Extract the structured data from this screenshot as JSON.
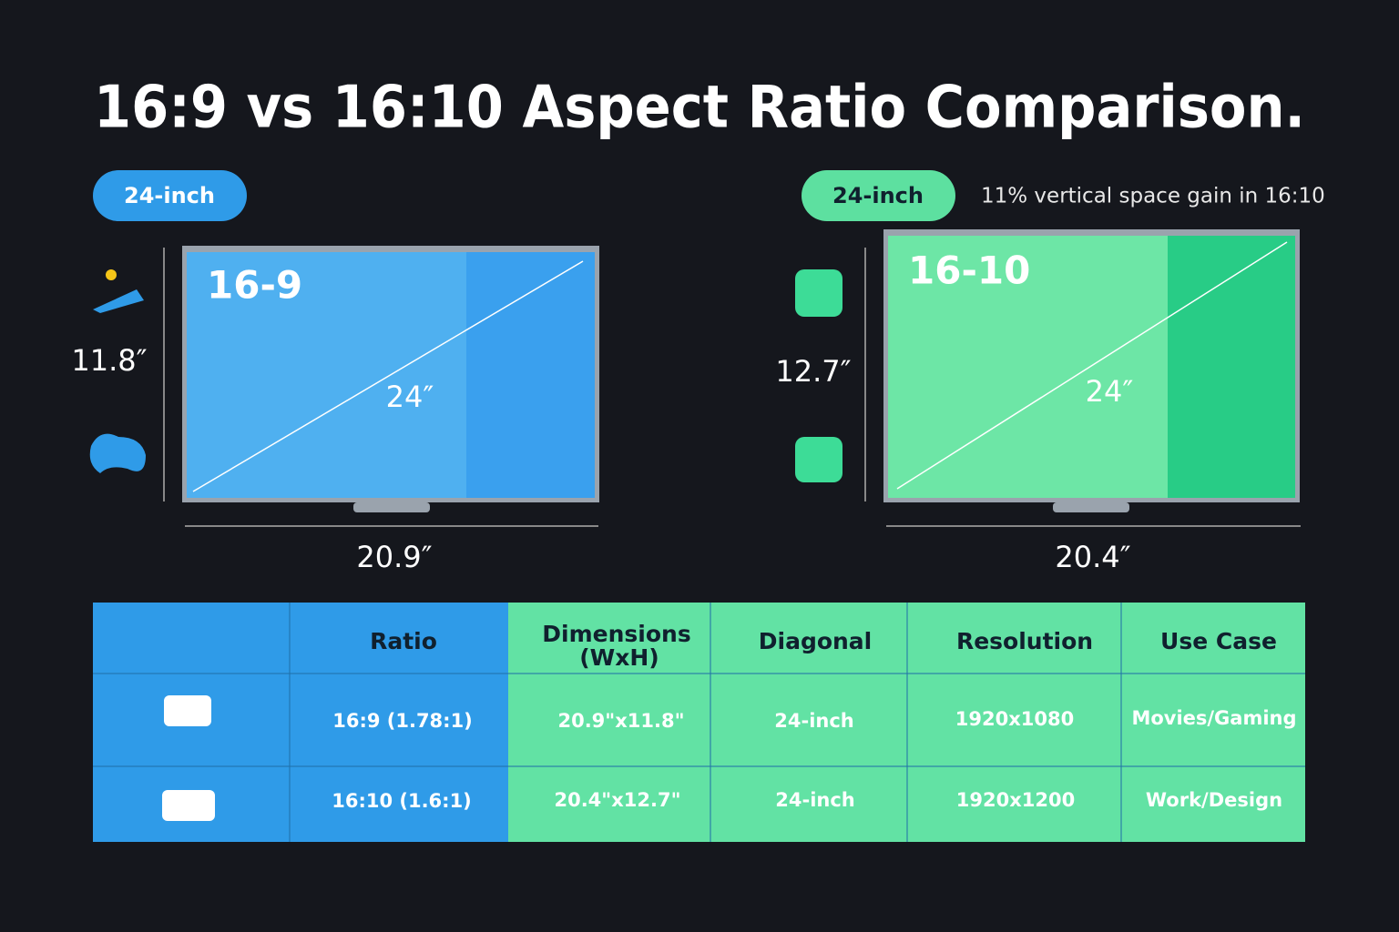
{
  "title": "16:9 vs 16:10 Aspect Ratio Comparison.",
  "left": {
    "badge": "24-inch",
    "screen_label": "16-9",
    "diagonal": "24″",
    "height": "11.8″",
    "width": "20.9″"
  },
  "right": {
    "badge": "24-inch",
    "note": "11% vertical space gain in 16:10",
    "screen_label": "16-10",
    "diagonal": "24″",
    "height": "12.7″",
    "width": "20.4″"
  },
  "table": {
    "headers": [
      "Ratio",
      "Dimensions",
      "Diagonal",
      "Resolution",
      "Use Case"
    ],
    "header_note": "(WxH)",
    "rows": [
      [
        "16:9 (1.78:1)",
        "20.9\"x11.8\"",
        "24-inch",
        "1920x1080",
        "Movies/Gaming"
      ],
      [
        "16:10 (1.6:1)",
        "20.4\"x12.7\"",
        "24-inch",
        "1920x1200",
        "Work/Design"
      ]
    ]
  }
}
